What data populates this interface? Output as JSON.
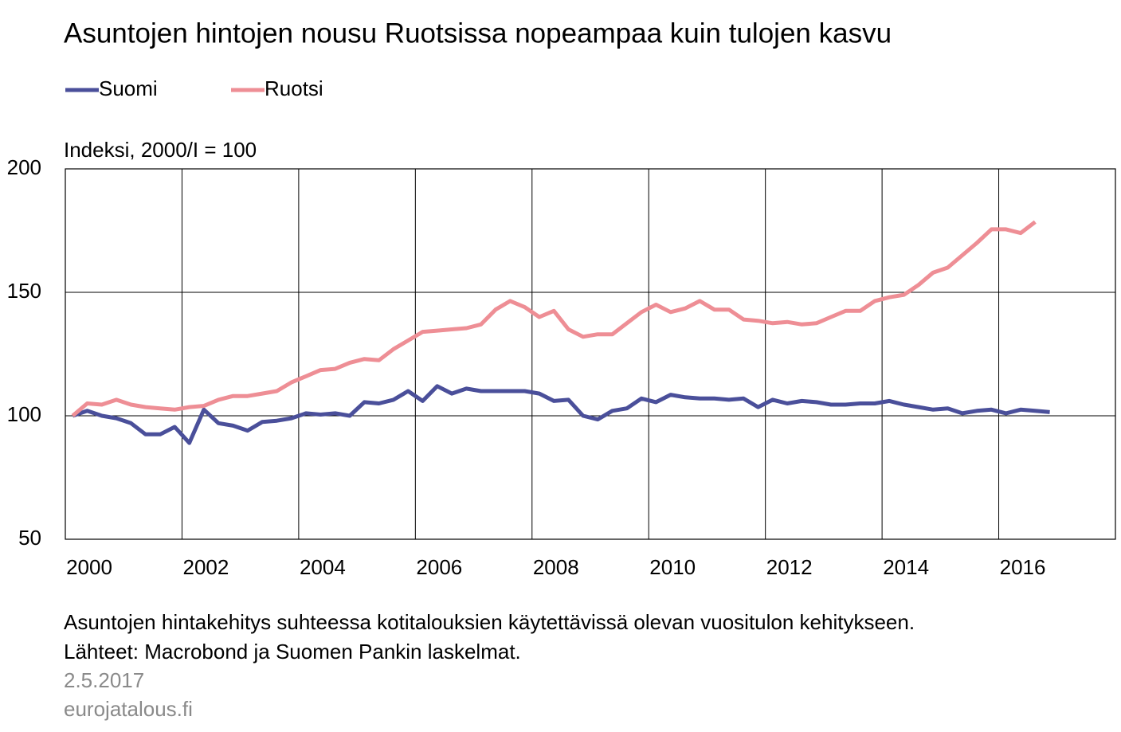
{
  "chart_data": {
    "type": "line",
    "title": "Asuntojen hintojen nousu Ruotsissa nopeampaa kuin tulojen kasvu",
    "y_label": "Indeksi, 2000/I = 100",
    "notes": [
      "Asuntojen hintakehitys suhteessa kotitalouksien käytettävissä olevan vuositulon kehitykseen.",
      "Lähteet: Macrobond ja Suomen Pankin laskelmat."
    ],
    "date": "2.5.2017",
    "source": "eurojatalous.fi",
    "legend": "top-left",
    "grid": true,
    "xlim": [
      2000,
      2018
    ],
    "xticks": [
      2000,
      2002,
      2004,
      2006,
      2008,
      2010,
      2012,
      2014,
      2016
    ],
    "ylim": [
      50,
      200
    ],
    "yticks": [
      50,
      100,
      150,
      200
    ],
    "x": [
      2000.125,
      2000.375,
      2000.625,
      2000.875,
      2001.125,
      2001.375,
      2001.625,
      2001.875,
      2002.125,
      2002.375,
      2002.625,
      2002.875,
      2003.125,
      2003.375,
      2003.625,
      2003.875,
      2004.125,
      2004.375,
      2004.625,
      2004.875,
      2005.125,
      2005.375,
      2005.625,
      2005.875,
      2006.125,
      2006.375,
      2006.625,
      2006.875,
      2007.125,
      2007.375,
      2007.625,
      2007.875,
      2008.125,
      2008.375,
      2008.625,
      2008.875,
      2009.125,
      2009.375,
      2009.625,
      2009.875,
      2010.125,
      2010.375,
      2010.625,
      2010.875,
      2011.125,
      2011.375,
      2011.625,
      2011.875,
      2012.125,
      2012.375,
      2012.625,
      2012.875,
      2013.125,
      2013.375,
      2013.625,
      2013.875,
      2014.125,
      2014.375,
      2014.625,
      2014.875,
      2015.125,
      2015.375,
      2015.625,
      2015.875,
      2016.125,
      2016.375,
      2016.625,
      2016.875
    ],
    "series": [
      {
        "name": "Suomi",
        "color": "#4a4f9a",
        "values": [
          100,
          102,
          100,
          99,
          97,
          92.5,
          92.5,
          95.5,
          89,
          102.5,
          97,
          96,
          94,
          97.5,
          98,
          99,
          101,
          100.5,
          101,
          100,
          105.5,
          105,
          106.5,
          110,
          106,
          112,
          109,
          111,
          110,
          110,
          110,
          110,
          109,
          106,
          106.5,
          100,
          98.5,
          102,
          103,
          107,
          105.5,
          108.5,
          107.5,
          107,
          107,
          106.5,
          107,
          103.5,
          106.5,
          105,
          106,
          105.5,
          104.5,
          104.5,
          105,
          105,
          106,
          104.5,
          103.5,
          102.5,
          103,
          101,
          102,
          102.5,
          101,
          102.5,
          102,
          101.5
        ]
      },
      {
        "name": "Ruotsi",
        "color": "#ee8e95",
        "values": [
          100,
          105,
          104.5,
          106.5,
          104.5,
          103.5,
          103,
          102.5,
          103.5,
          104,
          106.5,
          108,
          108,
          109,
          110,
          113.5,
          116,
          118.5,
          119,
          121.5,
          123,
          122.5,
          127,
          130.5,
          134,
          134.5,
          135,
          135.5,
          137,
          143,
          146.5,
          144,
          140,
          142.5,
          135,
          132,
          133,
          133,
          137.5,
          142,
          145,
          142,
          143.5,
          146.5,
          143,
          143,
          139,
          138.5,
          137.5,
          138,
          137,
          137.5,
          140,
          142.5,
          142.5,
          146.5,
          148,
          149,
          153,
          158,
          160,
          165,
          170,
          175.5,
          175.5,
          174,
          178.5,
          null
        ]
      }
    ]
  }
}
